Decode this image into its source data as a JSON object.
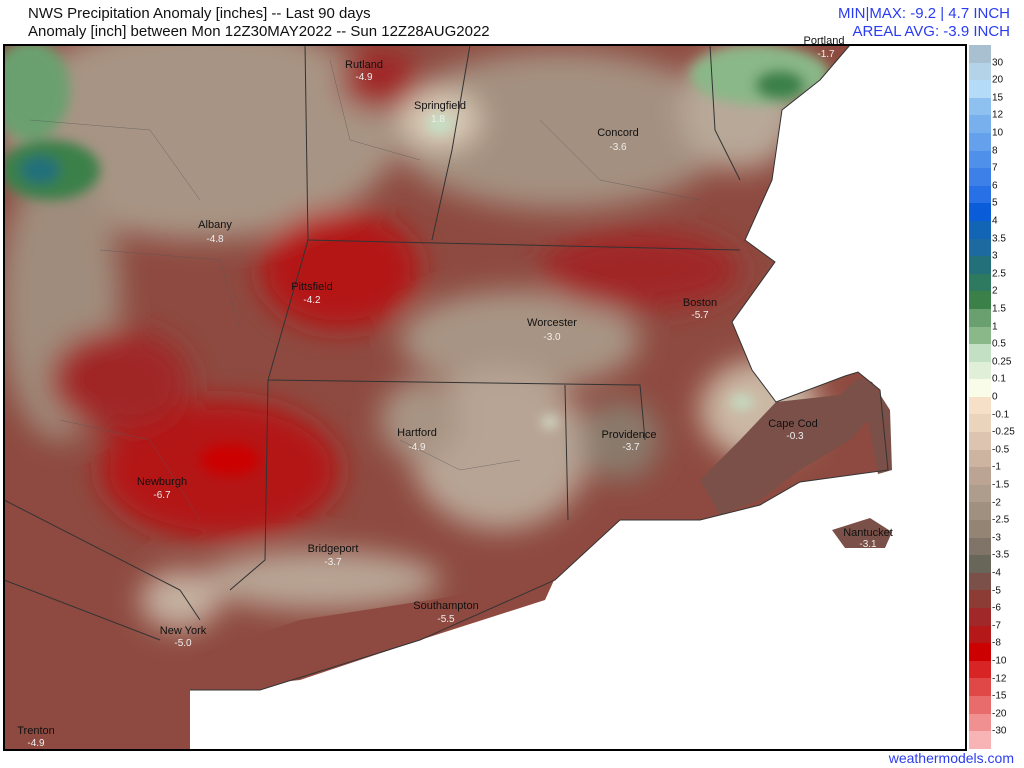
{
  "header": {
    "title": "NWS Precipitation Anomaly [inches] -- Last 90 days",
    "subtitle": "Anomaly [inch] between Mon 12Z30MAY2022 -- Sun 12Z28AUG2022",
    "minmax": "MIN|MAX: -9.2 | 4.7 INCH",
    "areal_avg": "AREAL AVG: -3.9 INCH"
  },
  "cities": [
    {
      "name": "Portland",
      "value": "-1.7"
    },
    {
      "name": "Rutland",
      "value": "-4.9"
    },
    {
      "name": "Springfield",
      "value": "1.8"
    },
    {
      "name": "Concord",
      "value": "-3.6"
    },
    {
      "name": "Albany",
      "value": "-4.8"
    },
    {
      "name": "Pittsfield",
      "value": "-4.2"
    },
    {
      "name": "Boston",
      "value": "-5.7"
    },
    {
      "name": "Worcester",
      "value": "-3.0"
    },
    {
      "name": "Cape Cod",
      "value": "-0.3"
    },
    {
      "name": "Hartford",
      "value": "-4.9"
    },
    {
      "name": "Providence",
      "value": "-3.7"
    },
    {
      "name": "Newburgh",
      "value": "-6.7"
    },
    {
      "name": "Nantucket",
      "value": "-3.1"
    },
    {
      "name": "Bridgeport",
      "value": "-3.7"
    },
    {
      "name": "Southampton",
      "value": "-5.5"
    },
    {
      "name": "New York",
      "value": "-5.0"
    },
    {
      "name": "Trenton",
      "value": "-4.9"
    }
  ],
  "legend": {
    "labels": [
      "30",
      "20",
      "15",
      "12",
      "10",
      "8",
      "7",
      "6",
      "5",
      "4",
      "3.5",
      "3",
      "2.5",
      "2",
      "1.5",
      "1",
      "0.5",
      "0.25",
      "0.1",
      "0",
      "-0.1",
      "-0.25",
      "-0.5",
      "-1",
      "-1.5",
      "-2",
      "-2.5",
      "-3",
      "-3.5",
      "-4",
      "-5",
      "-6",
      "-7",
      "-8",
      "-10",
      "-12",
      "-15",
      "-20",
      "-30"
    ],
    "colors": [
      "#a9c0d0",
      "#b5d3e8",
      "#b4dcf8",
      "#8ec0f0",
      "#78b0ee",
      "#64a0ec",
      "#4e90ea",
      "#3c80e8",
      "#2870e6",
      "#0a5cd8",
      "#1264b4",
      "#1c6aa0",
      "#24707a",
      "#2e7a60",
      "#3a8048",
      "#6aa070",
      "#8ab888",
      "#c4e0c4",
      "#e0f0d8",
      "#f8fce8",
      "#f6e0c8",
      "#ead4bc",
      "#dcc4b0",
      "#ccb4a0",
      "#bca494",
      "#ae9c8c",
      "#a09080",
      "#948474",
      "#807468",
      "#686658",
      "#7a5048",
      "#8c3c34",
      "#a02828",
      "#b41818",
      "#cc0000",
      "#d82424",
      "#e04848",
      "#e86c6c",
      "#f09090",
      "#f8b4b4"
    ]
  },
  "credit": "weathermodels.com"
}
